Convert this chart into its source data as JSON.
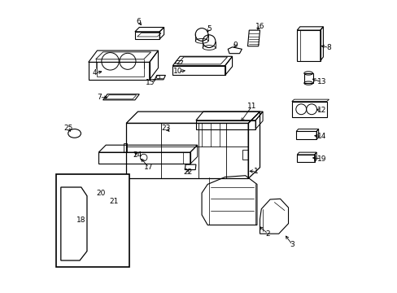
{
  "background_color": "#ffffff",
  "line_color": "#000000",
  "figsize": [
    4.89,
    3.6
  ],
  "dpi": 100,
  "parts_labels": {
    "1": [
      0.695,
      0.415,
      0.66,
      0.415
    ],
    "2": [
      0.735,
      0.195,
      0.705,
      0.215
    ],
    "3": [
      0.82,
      0.155,
      0.79,
      0.17
    ],
    "4": [
      0.145,
      0.75,
      0.19,
      0.75
    ],
    "5": [
      0.535,
      0.875,
      0.54,
      0.855
    ],
    "6": [
      0.295,
      0.91,
      0.318,
      0.895
    ],
    "7": [
      0.16,
      0.67,
      0.2,
      0.665
    ],
    "8": [
      0.945,
      0.84,
      0.908,
      0.84
    ],
    "9": [
      0.625,
      0.83,
      0.618,
      0.815
    ],
    "10": [
      0.43,
      0.758,
      0.465,
      0.755
    ],
    "11": [
      0.68,
      0.635,
      0.64,
      0.635
    ],
    "12": [
      0.92,
      0.62,
      0.895,
      0.62
    ],
    "13": [
      0.92,
      0.72,
      0.878,
      0.718
    ],
    "14": [
      0.92,
      0.53,
      0.882,
      0.53
    ],
    "15": [
      0.335,
      0.728,
      0.358,
      0.732
    ],
    "16": [
      0.712,
      0.885,
      0.71,
      0.87
    ],
    "17": [
      0.325,
      0.43,
      0.298,
      0.465
    ],
    "18": [
      0.098,
      0.245,
      0.11,
      0.26
    ],
    "19": [
      0.92,
      0.455,
      0.882,
      0.46
    ],
    "20": [
      0.165,
      0.335,
      0.165,
      0.318
    ],
    "21": [
      0.21,
      0.305,
      0.205,
      0.322
    ],
    "22": [
      0.465,
      0.412,
      0.478,
      0.425
    ],
    "23": [
      0.39,
      0.558,
      0.41,
      0.542
    ],
    "24": [
      0.29,
      0.468,
      0.278,
      0.483
    ],
    "25": [
      0.052,
      0.545,
      0.068,
      0.545
    ]
  }
}
